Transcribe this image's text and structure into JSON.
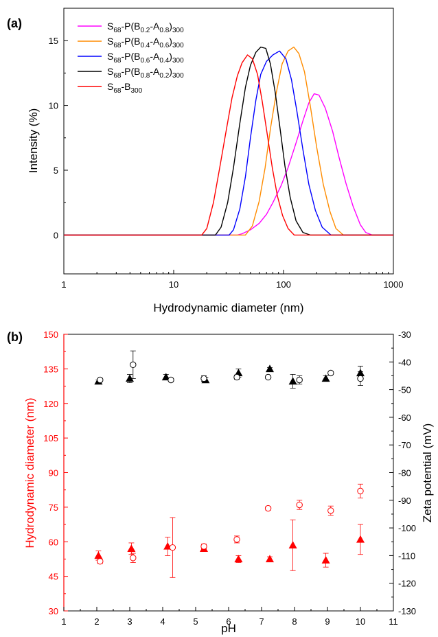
{
  "chart_data": [
    {
      "type": "line",
      "panel_label": "(a)",
      "xlabel": "Hydrodynamic diameter (nm)",
      "ylabel": "Intensity (%)",
      "xscale": "log",
      "xlim": [
        1,
        1000
      ],
      "ylim": [
        -3,
        17.5
      ],
      "xticks": [
        1,
        10,
        100,
        1000
      ],
      "xtick_labels": [
        "1",
        "10",
        "100",
        "1000"
      ],
      "yticks": [
        0,
        5,
        10,
        15
      ],
      "ytick_labels": [
        "0",
        "5",
        "10",
        "15"
      ],
      "legend_position": "top-left",
      "series": [
        {
          "name": "S68-P(B0.2-A0.8)300",
          "legend": [
            {
              "t": "S"
            },
            {
              "t": "68",
              "sub": true
            },
            {
              "t": "-P(B"
            },
            {
              "t": "0.2",
              "sub": true
            },
            {
              "t": "-A"
            },
            {
              "t": "0.8",
              "sub": true
            },
            {
              "t": ")"
            },
            {
              "t": "300",
              "sub": true
            }
          ],
          "color": "#ff00ff",
          "x": [
            1,
            38,
            42,
            50,
            60,
            70,
            80,
            95,
            110,
            130,
            150,
            170,
            190,
            210,
            240,
            280,
            320,
            370,
            430,
            500,
            560,
            640,
            1000
          ],
          "y": [
            0,
            0,
            0.1,
            0.4,
            0.9,
            1.6,
            2.5,
            3.8,
            5.2,
            7.1,
            8.8,
            10.2,
            10.9,
            10.8,
            9.8,
            8.0,
            6.0,
            4.0,
            2.2,
            0.8,
            0.2,
            0,
            0
          ]
        },
        {
          "name": "S68-P(B0.4-A0.6)300",
          "legend": [
            {
              "t": "S"
            },
            {
              "t": "68",
              "sub": true
            },
            {
              "t": "-P(B"
            },
            {
              "t": "0.4",
              "sub": true
            },
            {
              "t": "-A"
            },
            {
              "t": "0.6",
              "sub": true
            },
            {
              "t": ")"
            },
            {
              "t": "300",
              "sub": true
            }
          ],
          "color": "#ff8c00",
          "x": [
            1,
            45,
            52,
            60,
            68,
            76,
            86,
            97,
            110,
            124,
            138,
            155,
            175,
            200,
            230,
            265,
            300,
            350,
            1000
          ],
          "y": [
            0,
            0,
            0.7,
            2.6,
            5.2,
            8.2,
            11.0,
            13.2,
            14.2,
            14.5,
            14.0,
            12.6,
            10.0,
            6.8,
            3.9,
            1.8,
            0.5,
            0,
            0
          ]
        },
        {
          "name": "S68-P(B0.6-A0.4)300",
          "legend": [
            {
              "t": "S"
            },
            {
              "t": "68",
              "sub": true
            },
            {
              "t": "-P(B"
            },
            {
              "t": "0.6",
              "sub": true
            },
            {
              "t": "-A"
            },
            {
              "t": "0.4",
              "sub": true
            },
            {
              "t": ")"
            },
            {
              "t": "300",
              "sub": true
            }
          ],
          "color": "#0000ff",
          "x": [
            1,
            32,
            35,
            40,
            45,
            50,
            56,
            62,
            70,
            80,
            92,
            105,
            118,
            132,
            150,
            170,
            195,
            225,
            270,
            1000
          ],
          "y": [
            0,
            0,
            0.4,
            2.0,
            4.5,
            7.5,
            10.4,
            12.4,
            13.4,
            13.9,
            14.2,
            13.6,
            12.0,
            9.6,
            6.6,
            3.9,
            1.9,
            0.6,
            0,
            0
          ]
        },
        {
          "name": "S68-P(B0.8-A0.2)300",
          "legend": [
            {
              "t": "S"
            },
            {
              "t": "68",
              "sub": true
            },
            {
              "t": "-P(B"
            },
            {
              "t": "0.8",
              "sub": true
            },
            {
              "t": "-A"
            },
            {
              "t": "0.2",
              "sub": true
            },
            {
              "t": ")"
            },
            {
              "t": "300",
              "sub": true
            }
          ],
          "color": "#000000",
          "x": [
            1,
            24,
            27,
            31,
            35,
            40,
            45,
            50,
            56,
            62,
            69,
            76,
            84,
            93,
            103,
            115,
            130,
            150,
            175,
            1000
          ],
          "y": [
            0,
            0,
            0.6,
            2.5,
            5.2,
            8.6,
            11.4,
            13.1,
            14.1,
            14.5,
            14.4,
            13.2,
            11.0,
            8.2,
            5.3,
            2.9,
            1.1,
            0.2,
            0,
            0
          ]
        },
        {
          "name": "S68-B300",
          "legend": [
            {
              "t": "S"
            },
            {
              "t": "68",
              "sub": true
            },
            {
              "t": "-B"
            },
            {
              "t": "300",
              "sub": true
            }
          ],
          "color": "#ff0000",
          "x": [
            1,
            18,
            20,
            23,
            26,
            30,
            34,
            38,
            42,
            47,
            52,
            58,
            64,
            71,
            79,
            88,
            98,
            110,
            125,
            145,
            1000
          ],
          "y": [
            0,
            0,
            0.5,
            2.5,
            5.0,
            8.0,
            10.6,
            12.3,
            13.3,
            13.9,
            13.6,
            12.4,
            10.3,
            7.8,
            5.2,
            3.0,
            1.5,
            0.5,
            0,
            0,
            0
          ]
        }
      ]
    },
    {
      "type": "scatter",
      "panel_label": "(b)",
      "xlabel": "pH",
      "ylabel_left": "Hydrodynamic diameter (nm)",
      "ylabel_right": "Zeta potential (mV)",
      "xlim": [
        1,
        11
      ],
      "xticks": [
        1,
        2,
        3,
        4,
        5,
        6,
        7,
        8,
        9,
        10,
        11
      ],
      "ylim_left": [
        30,
        150
      ],
      "yticks_left": [
        30,
        45,
        60,
        75,
        90,
        105,
        120,
        135,
        150
      ],
      "ylim_right": [
        -130,
        -30
      ],
      "yticks_right": [
        -130,
        -120,
        -110,
        -100,
        -90,
        -80,
        -70,
        -60,
        -50,
        -40,
        -30
      ],
      "left_axis_color": "#ff0000",
      "series": [
        {
          "marker": "filled-triangle",
          "axis": "left",
          "color": "#ff0000",
          "x": [
            2.05,
            3.05,
            4.15,
            5.25,
            6.3,
            7.25,
            7.95,
            8.95,
            10.0
          ],
          "y": [
            54,
            57,
            58,
            57,
            52.5,
            52.5,
            58.5,
            52,
            61
          ],
          "err": [
            2,
            2.5,
            4,
            1,
            1.5,
            1,
            11,
            3,
            6.5
          ]
        },
        {
          "marker": "open-circle",
          "axis": "left",
          "color": "#ff0000",
          "x": [
            2.1,
            3.1,
            4.3,
            5.25,
            6.25,
            7.2,
            8.15,
            9.1,
            10.0
          ],
          "y": [
            51.5,
            53,
            57.5,
            58,
            61,
            74.5,
            76,
            73.5,
            82
          ],
          "err": [
            1,
            2,
            13,
            1,
            1.5,
            0.8,
            2,
            2,
            3
          ]
        },
        {
          "marker": "filled-triangle",
          "axis": "right",
          "color": "#000000",
          "x": [
            2.05,
            3.0,
            4.1,
            5.3,
            6.3,
            7.25,
            7.95,
            8.95,
            10.0
          ],
          "y": [
            -47,
            -46,
            -45.5,
            -46.5,
            -44,
            -42.5,
            -47,
            -46,
            -44
          ],
          "err": [
            0.5,
            1.5,
            1,
            1,
            1.5,
            0.5,
            2.5,
            1,
            2.5
          ]
        },
        {
          "marker": "open-circle",
          "axis": "right",
          "color": "#000000",
          "x": [
            2.1,
            3.1,
            4.25,
            5.25,
            6.25,
            7.2,
            8.15,
            9.1,
            10.0
          ],
          "y": [
            -46.5,
            -41,
            -46.5,
            -46,
            -45.5,
            -45.5,
            -46.5,
            -44,
            -46
          ],
          "err": [
            0.5,
            5,
            0.5,
            1,
            0.8,
            0.5,
            1.5,
            0.5,
            2.5
          ]
        }
      ]
    }
  ]
}
